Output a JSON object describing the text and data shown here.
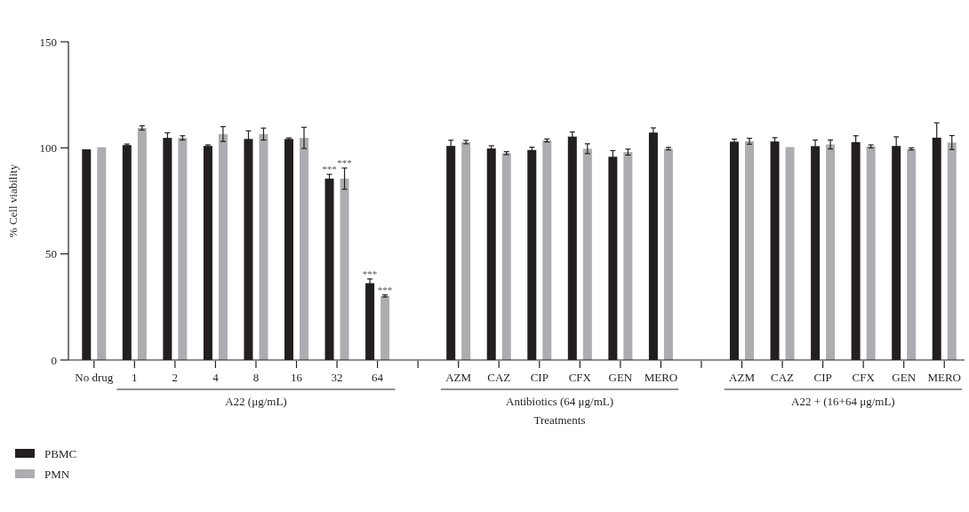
{
  "chart_data": {
    "type": "bar",
    "xlabel": "Treatments",
    "ylabel": "% Cell viability",
    "ylim": [
      0,
      150
    ],
    "yticks": [
      0,
      50,
      100,
      150
    ],
    "grid": false,
    "legend": "bottom",
    "categories": [
      "No drug",
      "1",
      "2",
      "4",
      "8",
      "16",
      "32",
      "64",
      null,
      "AZM",
      "CAZ",
      "CIP",
      "CFX",
      "GEN",
      "MERO",
      null,
      "AZM",
      "CAZ",
      "CIP",
      "CFX",
      "GEN",
      "MERO"
    ],
    "series": [
      {
        "name": "PBMC",
        "color": "#231f20",
        "values": [
          99.3,
          101.3,
          104.7,
          100.9,
          104.2,
          104.2,
          85.5,
          36.2,
          null,
          100.9,
          99.7,
          99.0,
          105.3,
          95.8,
          107.2,
          null,
          102.9,
          103.0,
          100.8,
          102.7,
          100.9,
          104.8
        ],
        "errors": [
          null,
          0.5,
          2.4,
          0.5,
          3.8,
          0.5,
          2,
          2,
          null,
          2.7,
          1.3,
          1.3,
          2.2,
          2.9,
          2.2,
          null,
          1.2,
          1.8,
          2.9,
          3,
          4.3,
          7
        ]
      },
      {
        "name": "PMN",
        "color": "#acadb0",
        "values": [
          100.3,
          109.4,
          104.7,
          106.5,
          106.5,
          104.7,
          85.5,
          30.2,
          null,
          102.7,
          97.5,
          103.5,
          99.6,
          98.0,
          99.6,
          null,
          103.1,
          100.4,
          101.6,
          100.7,
          99.5,
          102.5
        ],
        "errors": [
          null,
          1,
          1,
          3.5,
          2.8,
          5,
          5,
          0.5,
          null,
          0.8,
          0.7,
          0.7,
          2.3,
          1.4,
          0.6,
          null,
          1.4,
          null,
          2.1,
          0.7,
          0.5,
          3.3
        ]
      }
    ],
    "annotations": [
      "A22 (μg/mL)",
      "Antibiotics (64 μg/mL)",
      "A22 + (16+64 μg/mL)",
      "***",
      "***",
      "***",
      "***"
    ]
  }
}
